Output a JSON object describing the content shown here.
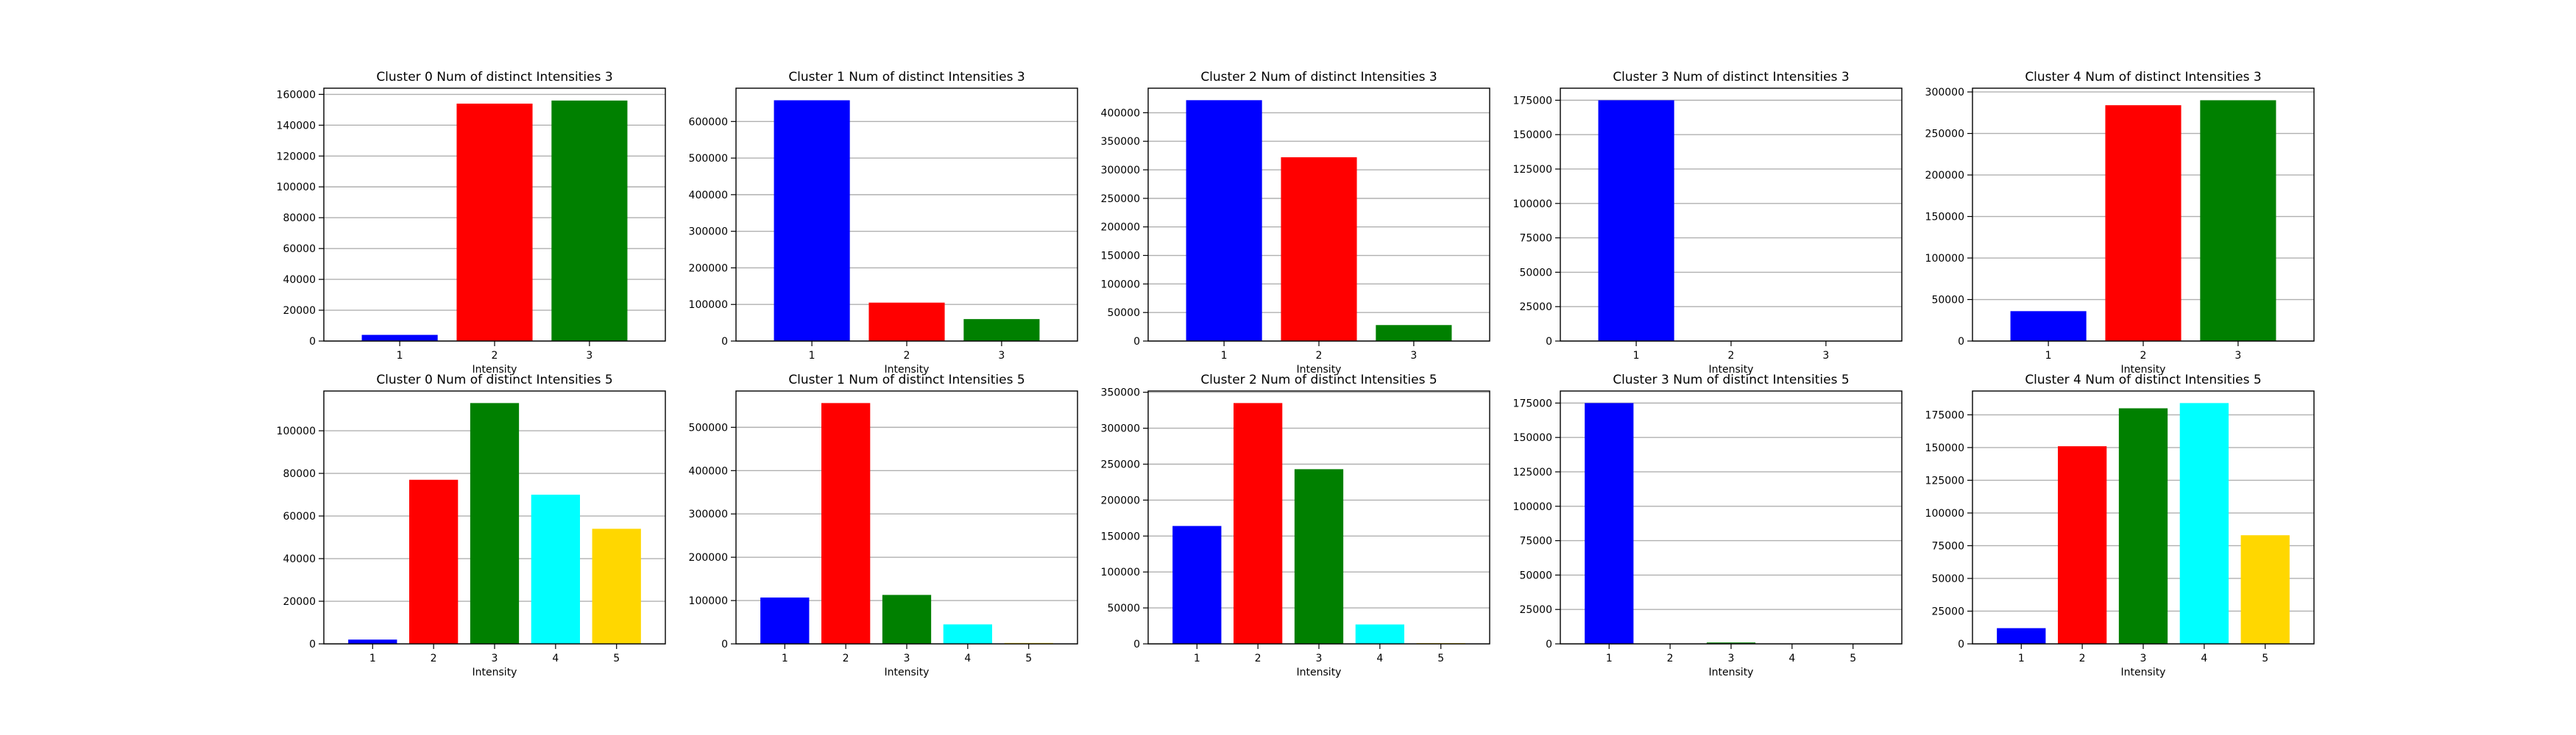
{
  "figure": {
    "background": "#ffffff",
    "grid": true,
    "grid_axis": "y",
    "grid_color": "#b0b0b0"
  },
  "colors": {
    "1": "#0000ff",
    "2": "#ff0000",
    "3": "#008000",
    "4": "#00ffff",
    "5": "#ffd700"
  },
  "chart_data": [
    {
      "type": "bar",
      "title": "Cluster 0 Num of distinct Intensities 3",
      "xlabel": "Intensity",
      "ylabel": "",
      "categories": [
        "1",
        "2",
        "3"
      ],
      "values": [
        4000,
        154000,
        156000
      ],
      "ylim": [
        0,
        164000
      ],
      "yticks": [
        0,
        20000,
        40000,
        60000,
        80000,
        100000,
        120000,
        140000,
        160000
      ]
    },
    {
      "type": "bar",
      "title": "Cluster 1 Num of distinct Intensities 3",
      "xlabel": "Intensity",
      "ylabel": "",
      "categories": [
        "1",
        "2",
        "3"
      ],
      "values": [
        658000,
        105000,
        60000
      ],
      "ylim": [
        0,
        691000
      ],
      "yticks": [
        0,
        100000,
        200000,
        300000,
        400000,
        500000,
        600000
      ]
    },
    {
      "type": "bar",
      "title": "Cluster 2 Num of distinct Intensities 3",
      "xlabel": "Intensity",
      "ylabel": "",
      "categories": [
        "1",
        "2",
        "3"
      ],
      "values": [
        422000,
        322000,
        28000
      ],
      "ylim": [
        0,
        443000
      ],
      "yticks": [
        0,
        50000,
        100000,
        150000,
        200000,
        250000,
        300000,
        350000,
        400000
      ]
    },
    {
      "type": "bar",
      "title": "Cluster 3 Num of distinct Intensities 3",
      "xlabel": "Intensity",
      "ylabel": "",
      "categories": [
        "1",
        "2",
        "3"
      ],
      "values": [
        175000,
        0,
        0
      ],
      "ylim": [
        0,
        183750
      ],
      "yticks": [
        0,
        25000,
        50000,
        75000,
        100000,
        125000,
        150000,
        175000
      ]
    },
    {
      "type": "bar",
      "title": "Cluster 4 Num of distinct Intensities 3",
      "xlabel": "Intensity",
      "ylabel": "",
      "categories": [
        "1",
        "2",
        "3"
      ],
      "values": [
        36000,
        284000,
        290000
      ],
      "ylim": [
        0,
        304500
      ],
      "yticks": [
        0,
        50000,
        100000,
        150000,
        200000,
        250000,
        300000
      ]
    },
    {
      "type": "bar",
      "title": "Cluster 0 Num of distinct Intensities 5",
      "xlabel": "Intensity",
      "ylabel": "",
      "categories": [
        "1",
        "2",
        "3",
        "4",
        "5"
      ],
      "values": [
        2000,
        77000,
        113000,
        70000,
        54000
      ],
      "ylim": [
        0,
        118650
      ],
      "yticks": [
        0,
        20000,
        40000,
        60000,
        80000,
        100000
      ]
    },
    {
      "type": "bar",
      "title": "Cluster 1 Num of distinct Intensities 5",
      "xlabel": "Intensity",
      "ylabel": "",
      "categories": [
        "1",
        "2",
        "3",
        "4",
        "5"
      ],
      "values": [
        107000,
        556000,
        113000,
        45000,
        2000
      ],
      "ylim": [
        0,
        583800
      ],
      "yticks": [
        0,
        100000,
        200000,
        300000,
        400000,
        500000
      ]
    },
    {
      "type": "bar",
      "title": "Cluster 2 Num of distinct Intensities 5",
      "xlabel": "Intensity",
      "ylabel": "",
      "categories": [
        "1",
        "2",
        "3",
        "4",
        "5"
      ],
      "values": [
        164000,
        335000,
        243000,
        27000,
        1000
      ],
      "ylim": [
        0,
        351750
      ],
      "yticks": [
        0,
        50000,
        100000,
        150000,
        200000,
        250000,
        300000,
        350000
      ]
    },
    {
      "type": "bar",
      "title": "Cluster 3 Num of distinct Intensities 5",
      "xlabel": "Intensity",
      "ylabel": "",
      "categories": [
        "1",
        "2",
        "3",
        "4",
        "5"
      ],
      "values": [
        175000,
        0,
        1000,
        0,
        0
      ],
      "ylim": [
        0,
        183750
      ],
      "yticks": [
        0,
        25000,
        50000,
        75000,
        100000,
        125000,
        150000,
        175000
      ]
    },
    {
      "type": "bar",
      "title": "Cluster 4 Num of distinct Intensities 5",
      "xlabel": "Intensity",
      "ylabel": "",
      "categories": [
        "1",
        "2",
        "3",
        "4",
        "5"
      ],
      "values": [
        12000,
        151000,
        180000,
        184000,
        83000
      ],
      "ylim": [
        0,
        193200
      ],
      "yticks": [
        0,
        25000,
        50000,
        75000,
        100000,
        125000,
        150000,
        175000
      ]
    }
  ]
}
